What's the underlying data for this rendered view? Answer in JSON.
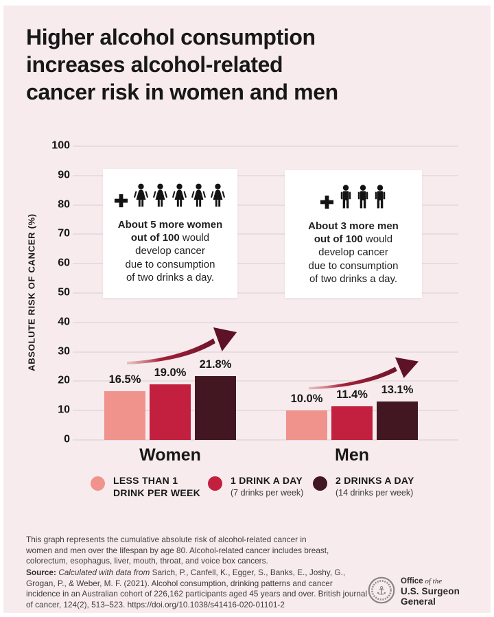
{
  "title": "Higher alcohol consumption\nincreases alcohol-related\ncancer risk in women and men",
  "chart_data": {
    "type": "bar",
    "categories": [
      "Women",
      "Men"
    ],
    "series": [
      {
        "name": "LESS THAN 1 DRINK PER WEEK",
        "values": [
          16.5,
          10.0
        ]
      },
      {
        "name": "1 DRINK A DAY (7 drinks per week)",
        "values": [
          19.0,
          11.4
        ]
      },
      {
        "name": "2 DRINKS A DAY (14 drinks per week)",
        "values": [
          21.8,
          13.1
        ]
      }
    ],
    "value_labels": [
      [
        "16.5%",
        "19.0%",
        "21.8%"
      ],
      [
        "10.0%",
        "11.4%",
        "13.1%"
      ]
    ],
    "title": "Higher alcohol consumption increases alcohol-related cancer risk in women and men",
    "xlabel": "",
    "ylabel": "ABSOLUTE RISK OF CANCER (%)",
    "ylim": [
      0,
      100
    ],
    "yticks": [
      0,
      10,
      20,
      30,
      40,
      50,
      60,
      70,
      80,
      90,
      100
    ],
    "grid": true,
    "legend_position": "bottom",
    "bar_colors": [
      "#F0938C",
      "#C2203E",
      "#431722"
    ],
    "background_color": "#F7EBEE",
    "trend_arrow_color": "#8E1D34"
  },
  "callouts": {
    "women": {
      "icon_type": "woman",
      "icon_count": 5,
      "lines": [
        {
          "b": "About 5 more women"
        },
        {
          "b": "out of 100",
          "r": " would"
        },
        {
          "r": "develop cancer"
        },
        {
          "r": "due to consumption"
        },
        {
          "r": "of two drinks a day."
        }
      ]
    },
    "men": {
      "icon_type": "man",
      "icon_count": 3,
      "lines": [
        {
          "b": "About 3 more men"
        },
        {
          "b": "out of 100",
          "r": " would"
        },
        {
          "r": "develop cancer"
        },
        {
          "r": "due to consumption"
        },
        {
          "r": "of two drinks a day."
        }
      ]
    }
  },
  "legend": [
    {
      "color": "#F0938C",
      "label": "LESS THAN 1\nDRINK PER WEEK",
      "sub": ""
    },
    {
      "color": "#C2203E",
      "label": "1 DRINK A DAY",
      "sub": "(7 drinks per week)"
    },
    {
      "color": "#431722",
      "label": "2 DRINKS A DAY",
      "sub": "(14 drinks per week)"
    }
  ],
  "footer": {
    "note": "This graph represents the cumulative absolute risk of alcohol-related cancer in\nwomen and men over the lifespan by age 80. Alcohol-related cancer includes breast,\ncolorectum, esophagus, liver, mouth, throat, and voice box cancers.",
    "source_label": "Source:",
    "source_italic": "Calculated with data from",
    "source_rest": "Sarich, P., Canfell, K., Egger, S., Banks, E., Joshy, G., Grogan, P., & Weber, M. F. (2021). Alcohol consumption, drinking patterns and cancer incidence in an Australian cohort of 226,162 participants aged 45 years and over. British journal of cancer, 124(2), 513–523. https://doi.org/10.1038/s41416-020-01101-2"
  },
  "logo": {
    "office": "Office",
    "of_the": " of the",
    "line2": "U.S. Surgeon General"
  }
}
